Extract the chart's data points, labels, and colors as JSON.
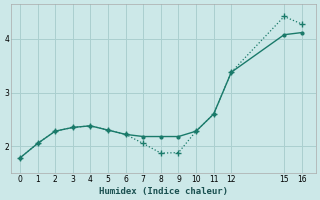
{
  "xlabel": "Humidex (Indice chaleur)",
  "bg_color": "#cce8e8",
  "grid_color": "#aacfcf",
  "line_color": "#1a7a6a",
  "line1_x": [
    0,
    1,
    2,
    3,
    4,
    5,
    6,
    7,
    8,
    9,
    10,
    11,
    12,
    15,
    16
  ],
  "line1_y": [
    1.78,
    2.05,
    2.28,
    2.35,
    2.38,
    2.3,
    2.22,
    2.05,
    1.87,
    1.88,
    2.28,
    2.6,
    3.38,
    4.42,
    4.28
  ],
  "line2_x": [
    0,
    1,
    2,
    3,
    4,
    5,
    6,
    7,
    8,
    9,
    10,
    11,
    12,
    15,
    16
  ],
  "line2_y": [
    1.78,
    2.05,
    2.28,
    2.35,
    2.38,
    2.3,
    2.22,
    2.18,
    2.18,
    2.18,
    2.28,
    2.6,
    3.38,
    4.08,
    4.12
  ],
  "ylim": [
    1.5,
    4.65
  ],
  "xlim": [
    -0.5,
    16.8
  ],
  "yticks": [
    2,
    3,
    4
  ],
  "xticks": [
    0,
    1,
    2,
    3,
    4,
    5,
    6,
    7,
    8,
    9,
    10,
    11,
    12,
    15,
    16
  ]
}
